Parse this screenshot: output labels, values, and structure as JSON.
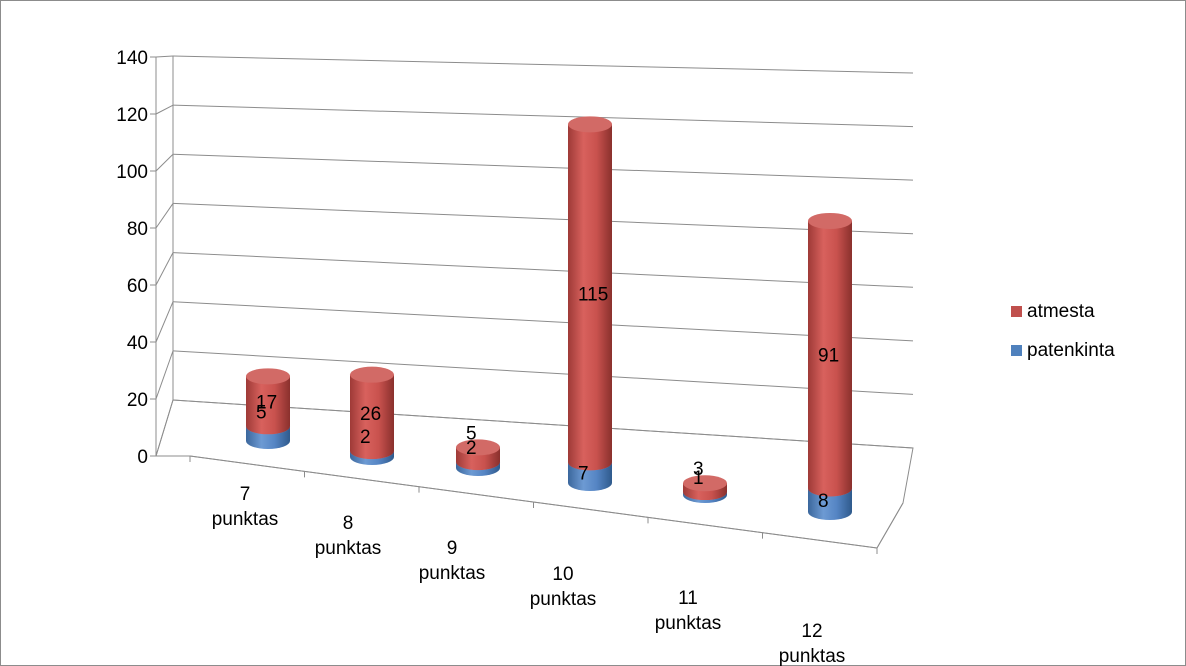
{
  "chart_data": {
    "type": "bar",
    "subtype": "3d-stacked-cylinder",
    "title": "",
    "xlabel": "",
    "ylabel": "",
    "ylim": [
      0,
      140
    ],
    "yticks": [
      0,
      20,
      40,
      60,
      80,
      100,
      120,
      140
    ],
    "grid": true,
    "legend_position": "right",
    "categories": [
      [
        "7",
        "punktas"
      ],
      [
        "8",
        "punktas"
      ],
      [
        "9",
        "punktas"
      ],
      [
        "10",
        "punktas"
      ],
      [
        "11",
        "punktas"
      ],
      [
        "12",
        "punktas"
      ]
    ],
    "series": [
      {
        "name": "patenkinta",
        "color": "#4f81bd",
        "values": [
          5,
          2,
          2,
          7,
          1,
          8
        ]
      },
      {
        "name": "atmesta",
        "color": "#c0504d",
        "values": [
          17,
          26,
          5,
          115,
          3,
          91
        ]
      }
    ]
  }
}
